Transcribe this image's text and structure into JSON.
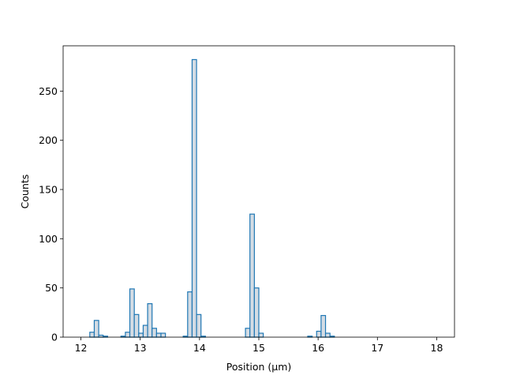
{
  "chart_data": {
    "type": "histogram",
    "title": "",
    "xlabel": "Position (μm)",
    "ylabel": "Counts",
    "xlim": [
      11.7,
      18.3
    ],
    "ylim": [
      0,
      296
    ],
    "xticks": [
      "12",
      "13",
      "14",
      "15",
      "16",
      "17",
      "18"
    ],
    "yticks": [
      "0",
      "50",
      "100",
      "150",
      "200",
      "250"
    ],
    "bin_edges_range": [
      12.0,
      18.0
    ],
    "bin_width": 0.075,
    "bins": [
      {
        "x0": 12.15,
        "x1": 12.225,
        "count": 5
      },
      {
        "x0": 12.225,
        "x1": 12.3,
        "count": 17
      },
      {
        "x0": 12.3,
        "x1": 12.375,
        "count": 2
      },
      {
        "x0": 12.375,
        "x1": 12.45,
        "count": 1
      },
      {
        "x0": 12.675,
        "x1": 12.75,
        "count": 1
      },
      {
        "x0": 12.75,
        "x1": 12.825,
        "count": 5
      },
      {
        "x0": 12.825,
        "x1": 12.9,
        "count": 49
      },
      {
        "x0": 12.9,
        "x1": 12.975,
        "count": 23
      },
      {
        "x0": 12.975,
        "x1": 13.05,
        "count": 4
      },
      {
        "x0": 13.05,
        "x1": 13.125,
        "count": 12
      },
      {
        "x0": 13.125,
        "x1": 13.2,
        "count": 34
      },
      {
        "x0": 13.2,
        "x1": 13.275,
        "count": 9
      },
      {
        "x0": 13.275,
        "x1": 13.35,
        "count": 4
      },
      {
        "x0": 13.35,
        "x1": 13.425,
        "count": 4
      },
      {
        "x0": 13.725,
        "x1": 13.8,
        "count": 1
      },
      {
        "x0": 13.8,
        "x1": 13.875,
        "count": 46
      },
      {
        "x0": 13.875,
        "x1": 13.95,
        "count": 282
      },
      {
        "x0": 13.95,
        "x1": 14.025,
        "count": 23
      },
      {
        "x0": 14.025,
        "x1": 14.1,
        "count": 1
      },
      {
        "x0": 14.775,
        "x1": 14.85,
        "count": 9
      },
      {
        "x0": 14.85,
        "x1": 14.925,
        "count": 125
      },
      {
        "x0": 14.925,
        "x1": 15.0,
        "count": 50
      },
      {
        "x0": 15.0,
        "x1": 15.075,
        "count": 4
      },
      {
        "x0": 15.825,
        "x1": 15.9,
        "count": 1
      },
      {
        "x0": 15.975,
        "x1": 16.05,
        "count": 6
      },
      {
        "x0": 16.05,
        "x1": 16.125,
        "count": 22
      },
      {
        "x0": 16.125,
        "x1": 16.2,
        "count": 4
      },
      {
        "x0": 16.2,
        "x1": 16.275,
        "count": 1
      }
    ],
    "colors": {
      "bar_fill": "#d4dce4",
      "bar_edge": "#1f77b4",
      "axes": "#000000"
    },
    "grid": false,
    "legend": "none"
  }
}
